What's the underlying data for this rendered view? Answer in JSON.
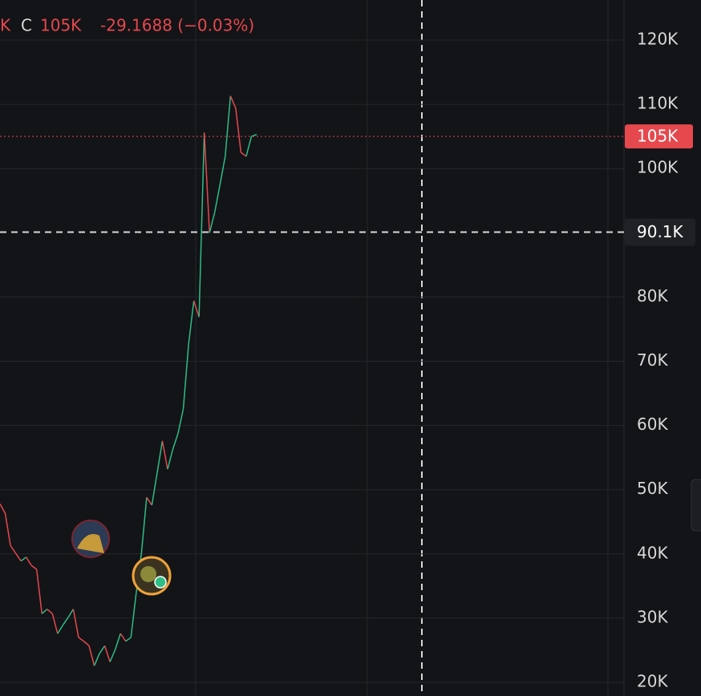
{
  "chart_data": {
    "type": "line",
    "header": {
      "open_label_tail": "K",
      "close_label": "C",
      "close_value": "105K",
      "change": "-29.1688 (−0.03%)"
    },
    "values": [
      47800,
      46300,
      41300,
      40100,
      38900,
      39500,
      38200,
      37600,
      30700,
      31400,
      30700,
      27600,
      28900,
      30100,
      31400,
      27000,
      26400,
      25700,
      22600,
      24500,
      25700,
      23200,
      25100,
      27600,
      26400,
      27000,
      33900,
      40100,
      48800,
      47600,
      52600,
      57600,
      53200,
      56300,
      58800,
      62600,
      72600,
      79400,
      76900,
      105600,
      90000,
      93200,
      97500,
      101900,
      111300,
      109400,
      102500,
      101900,
      105000,
      105300
    ],
    "up_color": "#2ebd85",
    "down_color": "#e5484d",
    "ylim": [
      17880,
      126240
    ],
    "yticks": [
      {
        "value": 20000,
        "label": "20K"
      },
      {
        "value": 30000,
        "label": "30K"
      },
      {
        "value": 40000,
        "label": "40K"
      },
      {
        "value": 50000,
        "label": "50K"
      },
      {
        "value": 60000,
        "label": "60K"
      },
      {
        "value": 70000,
        "label": "70K"
      },
      {
        "value": 80000,
        "label": "80K"
      },
      {
        "value": 100000,
        "label": "100K"
      },
      {
        "value": 110000,
        "label": "110K"
      },
      {
        "value": 120000,
        "label": "120K"
      }
    ],
    "last_price": {
      "value": 105000,
      "label": "105K"
    },
    "crosshair_price": {
      "value": 90100,
      "label": "90.1K"
    },
    "grid": true
  }
}
